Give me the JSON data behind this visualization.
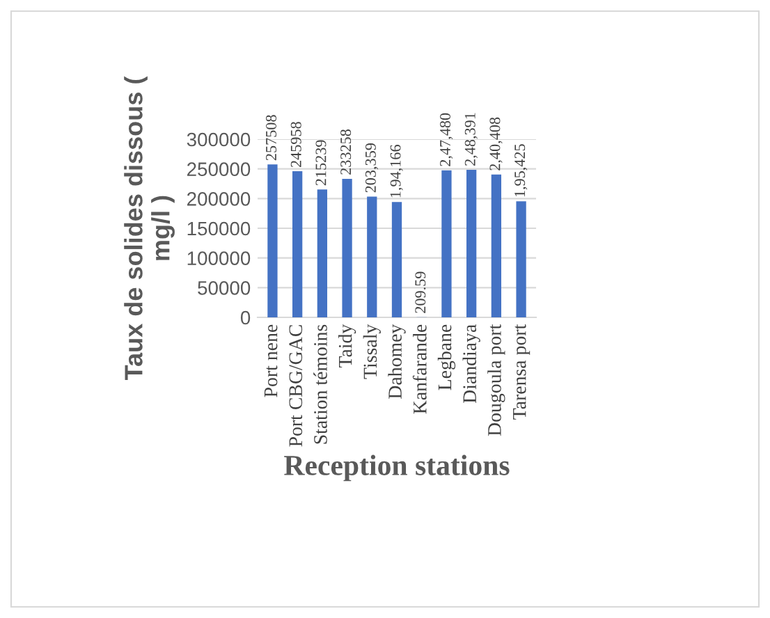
{
  "chart_data": {
    "type": "bar",
    "xlabel": "Reception stations",
    "ylabel": "Taux de solides dissous (\nmg/l )",
    "categories": [
      "Port nene",
      "Port CBG/GAC",
      "Station témoins",
      "Taidy",
      "Tissaly",
      "Dahomey",
      "Kanfarande",
      "Legbane",
      "Diandiaya",
      "Dougoula port",
      "Tarensa port"
    ],
    "values": [
      257508,
      245958,
      215239,
      233258,
      203359,
      194166,
      209.59,
      247480,
      248391,
      240408,
      195425
    ],
    "value_labels": [
      "257508",
      "245958",
      "215239",
      "233258",
      "203,359",
      "1,94,166",
      "209.59",
      "2,47,480",
      "2,48,391",
      "2,40,408",
      "1,95,425"
    ],
    "color": "#4472c4",
    "ylim": [
      0,
      300000
    ],
    "yticks": [
      0,
      50000,
      100000,
      150000,
      200000,
      250000,
      300000
    ],
    "grid": "y"
  }
}
